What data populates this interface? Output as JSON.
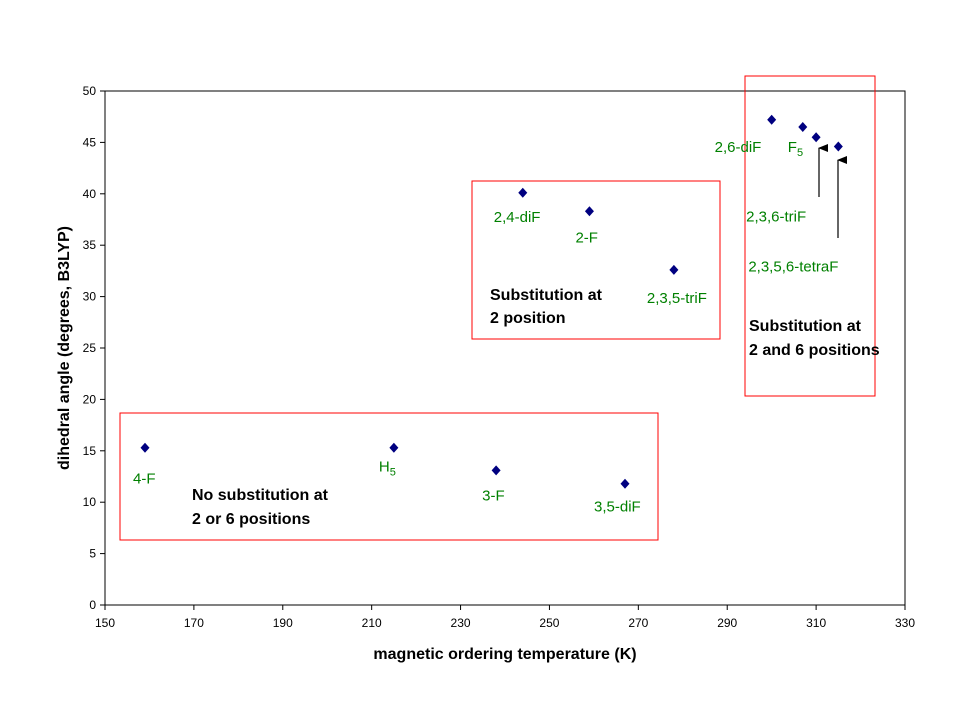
{
  "chart_data": {
    "type": "scatter",
    "title": "",
    "xlabel": "magnetic ordering temperature (K)",
    "ylabel": "dihedral angle (degrees, B3LYP)",
    "xlim": [
      150,
      330
    ],
    "ylim": [
      0,
      50
    ],
    "xticks": [
      150,
      170,
      190,
      210,
      230,
      250,
      270,
      290,
      310,
      330
    ],
    "yticks": [
      0,
      5,
      10,
      15,
      20,
      25,
      30,
      35,
      40,
      45,
      50
    ],
    "grid": false,
    "marker_color": "#000080",
    "label_color": "#008000",
    "box_color": "#FF0000",
    "points": [
      {
        "label": "4-F",
        "sub": "",
        "x": 159,
        "y": 15.3
      },
      {
        "label": "H",
        "sub": "5",
        "x": 215,
        "y": 15.3
      },
      {
        "label": "3-F",
        "sub": "",
        "x": 238,
        "y": 13.1
      },
      {
        "label": "3,5-diF",
        "sub": "",
        "x": 267,
        "y": 11.8
      },
      {
        "label": "2,4-diF",
        "sub": "",
        "x": 244,
        "y": 40.1
      },
      {
        "label": "2-F",
        "sub": "",
        "x": 259,
        "y": 38.3
      },
      {
        "label": "2,3,5-triF",
        "sub": "",
        "x": 278,
        "y": 32.6
      },
      {
        "label": "2,6-diF",
        "sub": "",
        "x": 300,
        "y": 47.2
      },
      {
        "label": "F",
        "sub": "5",
        "x": 307,
        "y": 46.5
      },
      {
        "label": "2,3,6-triF",
        "sub": "",
        "x": 310,
        "y": 45.5
      },
      {
        "label": "2,3,5,6-tetraF",
        "sub": "",
        "x": 315,
        "y": 44.6
      }
    ],
    "groups": [
      {
        "line1": "No substitution at",
        "line2": "2 or 6 positions"
      },
      {
        "line1": "Substitution at",
        "line2": "2 position"
      },
      {
        "line1": "Substitution at",
        "line2": "2 and 6 positions"
      }
    ]
  }
}
